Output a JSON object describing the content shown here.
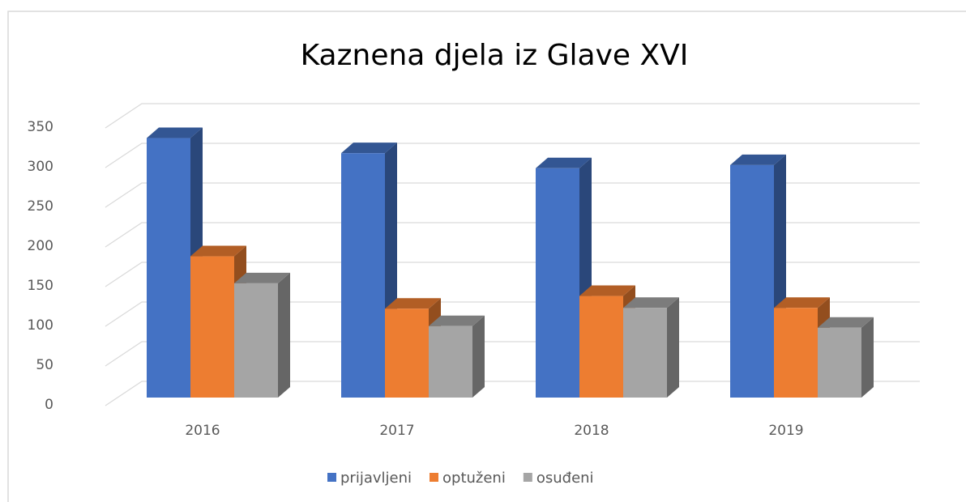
{
  "chart_data": {
    "type": "bar3d",
    "title": "Kaznena djela iz Glave XVI",
    "categories": [
      "2016",
      "2017",
      "2018",
      "2019"
    ],
    "series": [
      {
        "name": "prijavljeni",
        "color": "#4472c4",
        "values": [
          327,
          308,
          289,
          293
        ]
      },
      {
        "name": "optuženi",
        "color": "#ed7d31",
        "values": [
          178,
          112,
          128,
          113
        ]
      },
      {
        "name": "osuđeni",
        "color": "#a5a5a5",
        "values": [
          144,
          90,
          113,
          88
        ]
      }
    ],
    "ylim": [
      0,
      350
    ],
    "yticks": [
      0,
      50,
      100,
      150,
      200,
      250,
      300,
      350
    ],
    "grid": true,
    "legend": "bottom"
  }
}
